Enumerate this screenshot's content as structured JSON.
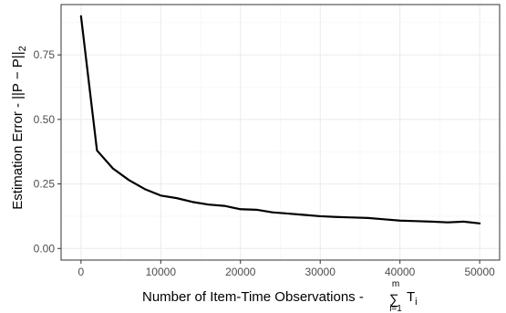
{
  "chart_data": {
    "type": "line",
    "title": "",
    "xlabel": {
      "text": "Number of Item-Time Observations - ",
      "sum_symbol": "∑",
      "sum_upper": "m",
      "sum_lower": "i=1",
      "term": "T",
      "term_sub": "i"
    },
    "ylabel": {
      "text": "Estimation Error - ",
      "norm_open": "||",
      "p_hat": "P",
      "hat": "^",
      "minus": " − ",
      "p": "P",
      "norm_close": "||",
      "sub": "2"
    },
    "xlim": [
      -2500,
      52500
    ],
    "ylim": [
      -0.045,
      0.945
    ],
    "x_ticks": [
      0,
      10000,
      20000,
      30000,
      40000,
      50000
    ],
    "x_tick_labels": [
      "0",
      "10000",
      "20000",
      "30000",
      "40000",
      "50000"
    ],
    "y_ticks": [
      0.0,
      0.25,
      0.5,
      0.75
    ],
    "y_tick_labels": [
      "0.00",
      "0.25",
      "0.50",
      "0.75"
    ],
    "grid": true,
    "line_color": "#000000",
    "series": [
      {
        "x": [
          0,
          2000,
          4000,
          6000,
          8000,
          10000,
          12000,
          14000,
          16000,
          18000,
          20000,
          22000,
          24000,
          26000,
          28000,
          30000,
          32000,
          34000,
          36000,
          38000,
          40000,
          42000,
          44000,
          46000,
          48000,
          50000
        ],
        "y": [
          0.9,
          0.38,
          0.31,
          0.265,
          0.23,
          0.205,
          0.195,
          0.18,
          0.17,
          0.165,
          0.152,
          0.15,
          0.14,
          0.135,
          0.13,
          0.125,
          0.122,
          0.12,
          0.118,
          0.113,
          0.108,
          0.106,
          0.104,
          0.101,
          0.104,
          0.097
        ]
      }
    ]
  }
}
